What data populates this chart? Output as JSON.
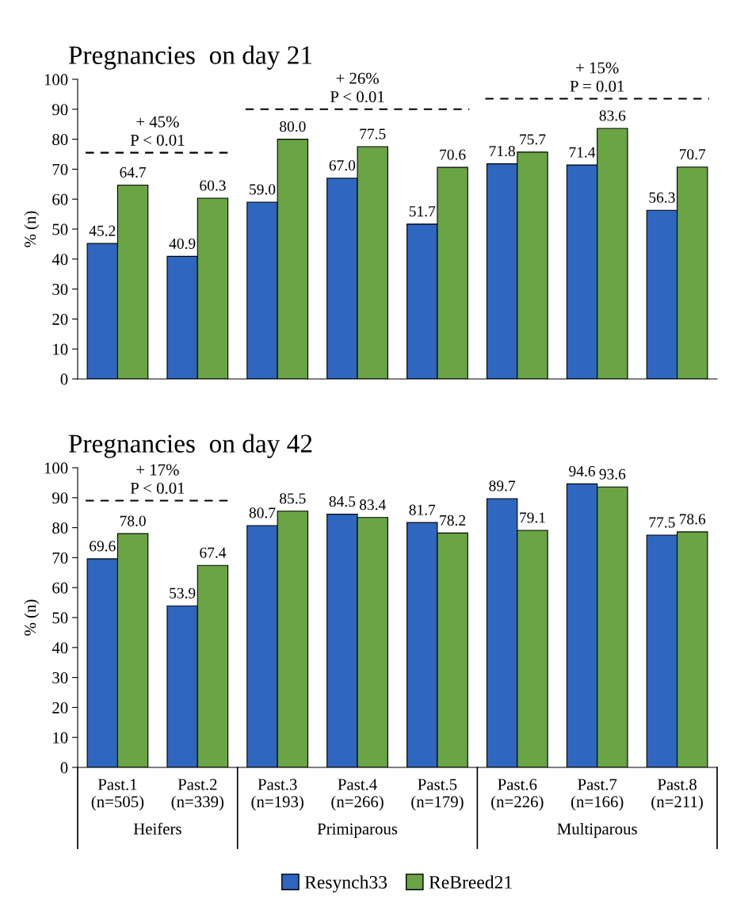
{
  "chart_data": [
    {
      "type": "bar",
      "title": "Pregnancies  on day 21",
      "ylabel": "% (n)",
      "categories": [
        null,
        null,
        null,
        null,
        null,
        null,
        null,
        null
      ],
      "series": [
        {
          "color": "#2e66c0",
          "values": [
            45.2,
            40.9,
            59.0,
            67.0,
            51.7,
            71.8,
            71.4,
            56.3
          ]
        },
        {
          "color": "#6aa444",
          "values": [
            64.7,
            60.3,
            80.0,
            77.5,
            70.6,
            75.7,
            83.6,
            70.7
          ]
        }
      ],
      "value_labels": [
        [
          "45.2",
          "40.9",
          "59.0",
          "67.0",
          "51.7",
          "71.8",
          "71.4",
          "56.3"
        ],
        [
          "64.7",
          "60.3",
          "80.0",
          "77.5",
          "70.6",
          "75.7",
          "83.6",
          "70.7"
        ]
      ],
      "ylim": [
        0,
        100
      ],
      "yticks": [
        0,
        10,
        20,
        30,
        40,
        50,
        60,
        70,
        80,
        90,
        100
      ],
      "ref_lines": [
        {
          "axis": "y",
          "value": 75.5,
          "color": "#000000",
          "line_style": "dashed"
        },
        {
          "axis": "y",
          "value": 90,
          "color": "#000000",
          "line_style": "dashed"
        },
        {
          "axis": "y",
          "value": 93.5,
          "color": "#000000",
          "line_style": "dashed"
        }
      ],
      "annotations": [
        "+ 45%\nP < 0.01",
        "+ 26%\nP < 0.01",
        "+ 15%\nP = 0.01"
      ],
      "tick_labels": "y",
      "grid": false,
      "legend": false
    },
    {
      "type": "bar",
      "title": "Pregnancies  on day 42",
      "ylabel": "% (n)",
      "categories": [
        "Past.1\n(n=505)",
        "Past.2\n(n=339)",
        "Past.3\n(n=193)",
        "Past.4\n(n=266)",
        "Past.5\n(n=179)",
        "Past.6\n(n=226)",
        "Past.7\n(n=166)",
        "Past.8\n(n=211)"
      ],
      "series": [
        {
          "name": "Resynch33",
          "color": "#2e66c0",
          "values": [
            69.6,
            53.9,
            80.7,
            84.5,
            81.7,
            89.7,
            94.6,
            77.5
          ]
        },
        {
          "name": "ReBreed21",
          "color": "#6aa444",
          "values": [
            78.0,
            67.4,
            85.5,
            83.4,
            78.2,
            79.1,
            93.6,
            78.6
          ]
        }
      ],
      "value_labels": [
        [
          "69.6",
          "53.9",
          "80.7",
          "84.5",
          "81.7",
          "89.7",
          "94.6",
          "77.5"
        ],
        [
          "78.0",
          "67.4",
          "85.5",
          "83.4",
          "78.2",
          "79.1",
          "93.6",
          "78.6"
        ]
      ],
      "ylim": [
        0,
        100
      ],
      "yticks": [
        0,
        10,
        20,
        30,
        40,
        50,
        60,
        70,
        80,
        90,
        100
      ],
      "ref_lines": [
        {
          "axis": "y",
          "value": 89,
          "color": "#000000",
          "line_style": "dashed"
        }
      ],
      "annotations": [
        "Heifers",
        "Primiparous",
        "Multiparous",
        "+ 17%\nP < 0.01"
      ],
      "grid": false,
      "legend": "bottom"
    }
  ]
}
